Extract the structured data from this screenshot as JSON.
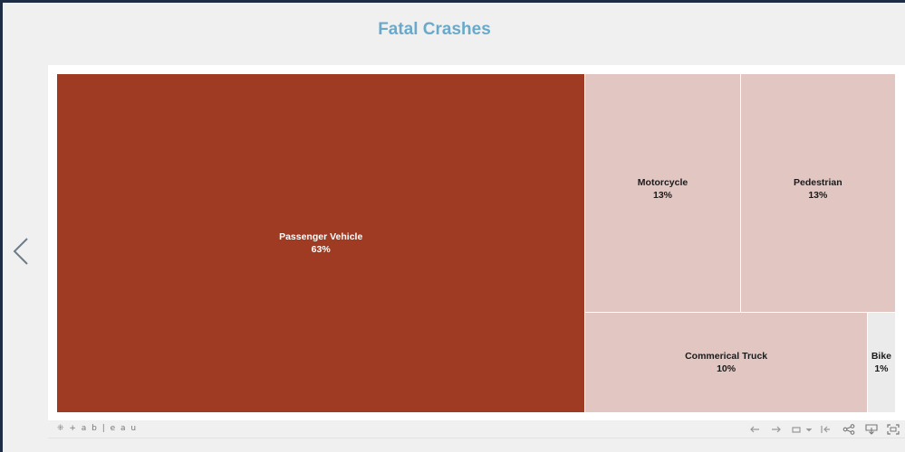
{
  "title": "Fatal Crashes",
  "brand": "⁜ + a b | e a u",
  "colors": {
    "primary": "#9e3b22",
    "secondary": "#e2c6c1",
    "minor": "#ebebeb",
    "title": "#6aa9c9"
  },
  "toolbar": {
    "icons": [
      "undo-icon",
      "redo-icon",
      "revert-icon",
      "pause-icon",
      "share-icon",
      "download-icon",
      "fullscreen-icon"
    ]
  },
  "chart_data": {
    "type": "treemap",
    "title": "Fatal Crashes",
    "items": [
      {
        "label": "Passenger Vehicle",
        "pct": "63%",
        "value": 63
      },
      {
        "label": "Motorcycle",
        "pct": "13%",
        "value": 13
      },
      {
        "label": "Pedestrian",
        "pct": "13%",
        "value": 13
      },
      {
        "label": "Commerical Truck",
        "pct": "10%",
        "value": 10
      },
      {
        "label": "Bike",
        "pct": "1%",
        "value": 1
      }
    ]
  }
}
